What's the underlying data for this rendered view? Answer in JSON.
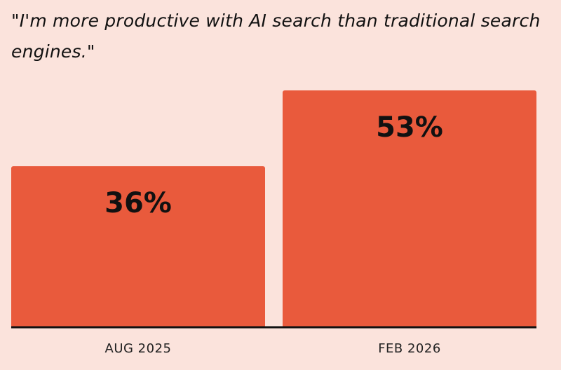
{
  "chart_data": {
    "type": "bar",
    "title": "\"I'm more productive with AI search than traditional search engines.\"",
    "categories": [
      "AUG 2025",
      "FEB 2026"
    ],
    "values": [
      36,
      53
    ],
    "value_labels": [
      "36%",
      "53%"
    ],
    "xlabel": "",
    "ylabel": "",
    "ylim": [
      0,
      53
    ],
    "grid": false,
    "legend": "none",
    "bar_color": "#e95a3c",
    "background_color": "#fbe3dc",
    "axis_color": "#111111"
  }
}
